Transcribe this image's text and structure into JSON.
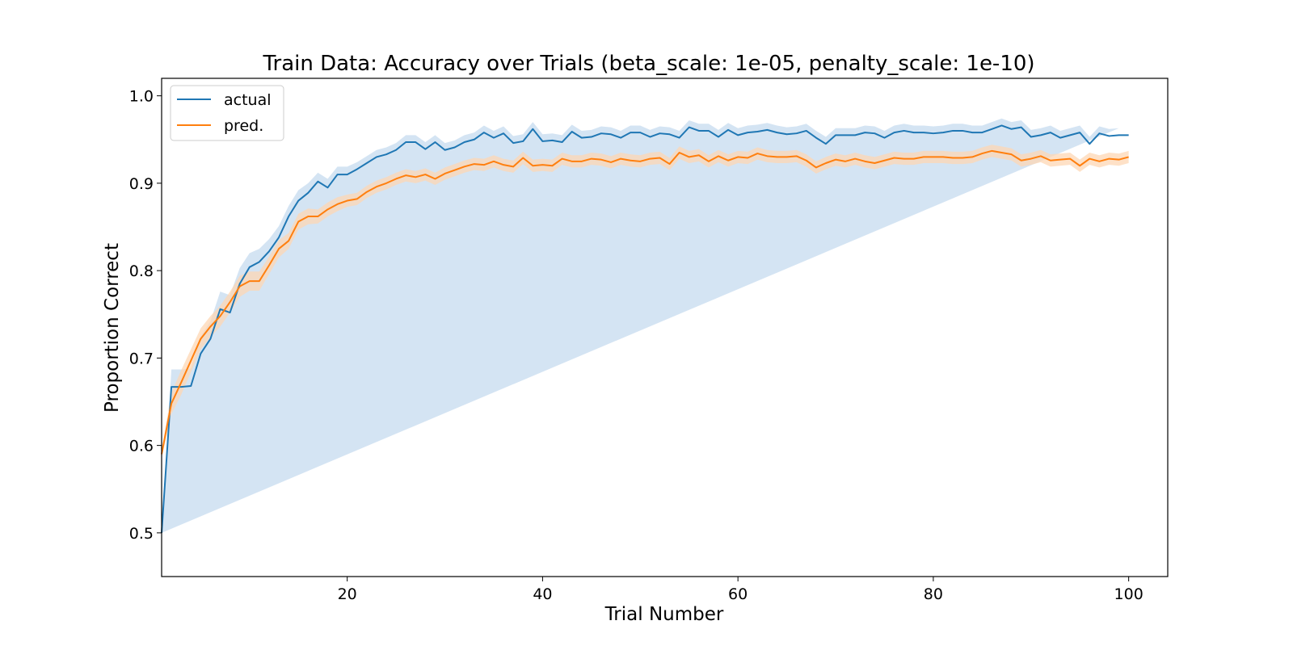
{
  "chart_data": {
    "type": "line",
    "title": "Train Data: Accuracy over Trials (beta_scale: 1e-05, penalty_scale: 1e-10)",
    "xlabel": "Trial Number",
    "ylabel": "Proportion Correct",
    "xlim": [
      1,
      104
    ],
    "ylim": [
      0.45,
      1.02
    ],
    "xticks": [
      20,
      40,
      60,
      80,
      100
    ],
    "xtick_labels": [
      "20",
      "40",
      "60",
      "80",
      "100"
    ],
    "yticks": [
      0.5,
      0.6,
      0.7,
      0.8,
      0.9,
      1.0
    ],
    "ytick_labels": [
      "0.5",
      "0.6",
      "0.7",
      "0.8",
      "0.9",
      "1.0"
    ],
    "grid": false,
    "legend_position": "top-left",
    "x_start": 1,
    "series": [
      {
        "name": "actual",
        "color": "#1f77b4",
        "band_color": "#c6dbef",
        "band_halfwidth": [
          0.0,
          0.02,
          0.02,
          0.02,
          0.02,
          0.02,
          0.02,
          0.02,
          0.018,
          0.016,
          0.015,
          0.014,
          0.013,
          0.012,
          0.012,
          0.011,
          0.01,
          0.01,
          0.009,
          0.009,
          0.008,
          0.008,
          0.008,
          0.008,
          0.008,
          0.008,
          0.008,
          0.008,
          0.008,
          0.008,
          0.008,
          0.008,
          0.008,
          0.008,
          0.008,
          0.008,
          0.008,
          0.008,
          0.008,
          0.008,
          0.008,
          0.008,
          0.008,
          0.008,
          0.008,
          0.008,
          0.008,
          0.008,
          0.008,
          0.008,
          0.008,
          0.008,
          0.008,
          0.008,
          0.008,
          0.008,
          0.008,
          0.008,
          0.008,
          0.008,
          0.008,
          0.008,
          0.008,
          0.008,
          0.008,
          0.008,
          0.008,
          0.008,
          0.008,
          0.008,
          0.008,
          0.008,
          0.008,
          0.008,
          0.008,
          0.008,
          0.008,
          0.008,
          0.008,
          0.008,
          0.008,
          0.008,
          0.008,
          0.008,
          0.008,
          0.008,
          0.008,
          0.008,
          0.008,
          0.008,
          0.008,
          0.008,
          0.008,
          0.008,
          0.008,
          0.008,
          0.008,
          0.008,
          0.008
        ],
        "values": [
          0.5,
          0.667,
          0.667,
          0.668,
          0.705,
          0.722,
          0.756,
          0.752,
          0.785,
          0.804,
          0.81,
          0.822,
          0.838,
          0.862,
          0.88,
          0.889,
          0.902,
          0.895,
          0.91,
          0.91,
          0.916,
          0.923,
          0.93,
          0.933,
          0.938,
          0.947,
          0.947,
          0.939,
          0.947,
          0.938,
          0.941,
          0.947,
          0.95,
          0.958,
          0.952,
          0.957,
          0.946,
          0.948,
          0.962,
          0.948,
          0.949,
          0.947,
          0.959,
          0.952,
          0.953,
          0.957,
          0.956,
          0.952,
          0.958,
          0.958,
          0.953,
          0.957,
          0.956,
          0.952,
          0.964,
          0.96,
          0.96,
          0.953,
          0.961,
          0.955,
          0.958,
          0.959,
          0.961,
          0.958,
          0.956,
          0.957,
          0.96,
          0.952,
          0.945,
          0.955,
          0.955,
          0.955,
          0.958,
          0.957,
          0.952,
          0.958,
          0.96,
          0.958,
          0.958,
          0.957,
          0.958,
          0.96,
          0.96,
          0.958,
          0.958,
          0.962,
          0.966,
          0.962,
          0.964,
          0.953,
          0.955,
          0.958,
          0.952,
          0.955,
          0.958,
          0.945,
          0.957,
          0.954,
          0.955,
          0.955
        ]
      },
      {
        "name": "pred.",
        "color": "#ff7f0e",
        "band_color": "#fdd7b4",
        "band_halfwidth": [
          0.005,
          0.012,
          0.014,
          0.013,
          0.012,
          0.012,
          0.012,
          0.012,
          0.012,
          0.011,
          0.011,
          0.01,
          0.01,
          0.009,
          0.009,
          0.009,
          0.008,
          0.008,
          0.008,
          0.007,
          0.007,
          0.007,
          0.007,
          0.007,
          0.007,
          0.007,
          0.007,
          0.007,
          0.007,
          0.007,
          0.007,
          0.007,
          0.007,
          0.007,
          0.007,
          0.007,
          0.007,
          0.007,
          0.007,
          0.007,
          0.007,
          0.007,
          0.007,
          0.007,
          0.007,
          0.007,
          0.007,
          0.007,
          0.007,
          0.007,
          0.007,
          0.007,
          0.007,
          0.007,
          0.007,
          0.007,
          0.007,
          0.007,
          0.007,
          0.007,
          0.007,
          0.007,
          0.007,
          0.007,
          0.007,
          0.007,
          0.007,
          0.007,
          0.007,
          0.007,
          0.007,
          0.007,
          0.007,
          0.007,
          0.007,
          0.007,
          0.007,
          0.007,
          0.007,
          0.007,
          0.007,
          0.007,
          0.007,
          0.007,
          0.007,
          0.007,
          0.007,
          0.007,
          0.007,
          0.007,
          0.007,
          0.007,
          0.007,
          0.007,
          0.007,
          0.007,
          0.007,
          0.007,
          0.007,
          0.007
        ],
        "values": [
          0.59,
          0.648,
          0.672,
          0.697,
          0.722,
          0.736,
          0.748,
          0.764,
          0.782,
          0.788,
          0.788,
          0.806,
          0.825,
          0.834,
          0.856,
          0.862,
          0.862,
          0.87,
          0.876,
          0.88,
          0.882,
          0.89,
          0.896,
          0.9,
          0.905,
          0.909,
          0.907,
          0.91,
          0.905,
          0.911,
          0.915,
          0.919,
          0.922,
          0.921,
          0.925,
          0.921,
          0.919,
          0.929,
          0.92,
          0.921,
          0.92,
          0.928,
          0.925,
          0.925,
          0.928,
          0.927,
          0.924,
          0.928,
          0.926,
          0.925,
          0.928,
          0.929,
          0.922,
          0.935,
          0.93,
          0.932,
          0.925,
          0.931,
          0.926,
          0.93,
          0.929,
          0.934,
          0.931,
          0.93,
          0.93,
          0.931,
          0.926,
          0.918,
          0.923,
          0.927,
          0.925,
          0.928,
          0.925,
          0.923,
          0.926,
          0.929,
          0.928,
          0.928,
          0.93,
          0.93,
          0.93,
          0.929,
          0.929,
          0.93,
          0.934,
          0.937,
          0.935,
          0.933,
          0.926,
          0.928,
          0.931,
          0.926,
          0.927,
          0.928,
          0.92,
          0.928,
          0.925,
          0.928,
          0.927,
          0.93
        ]
      }
    ]
  }
}
